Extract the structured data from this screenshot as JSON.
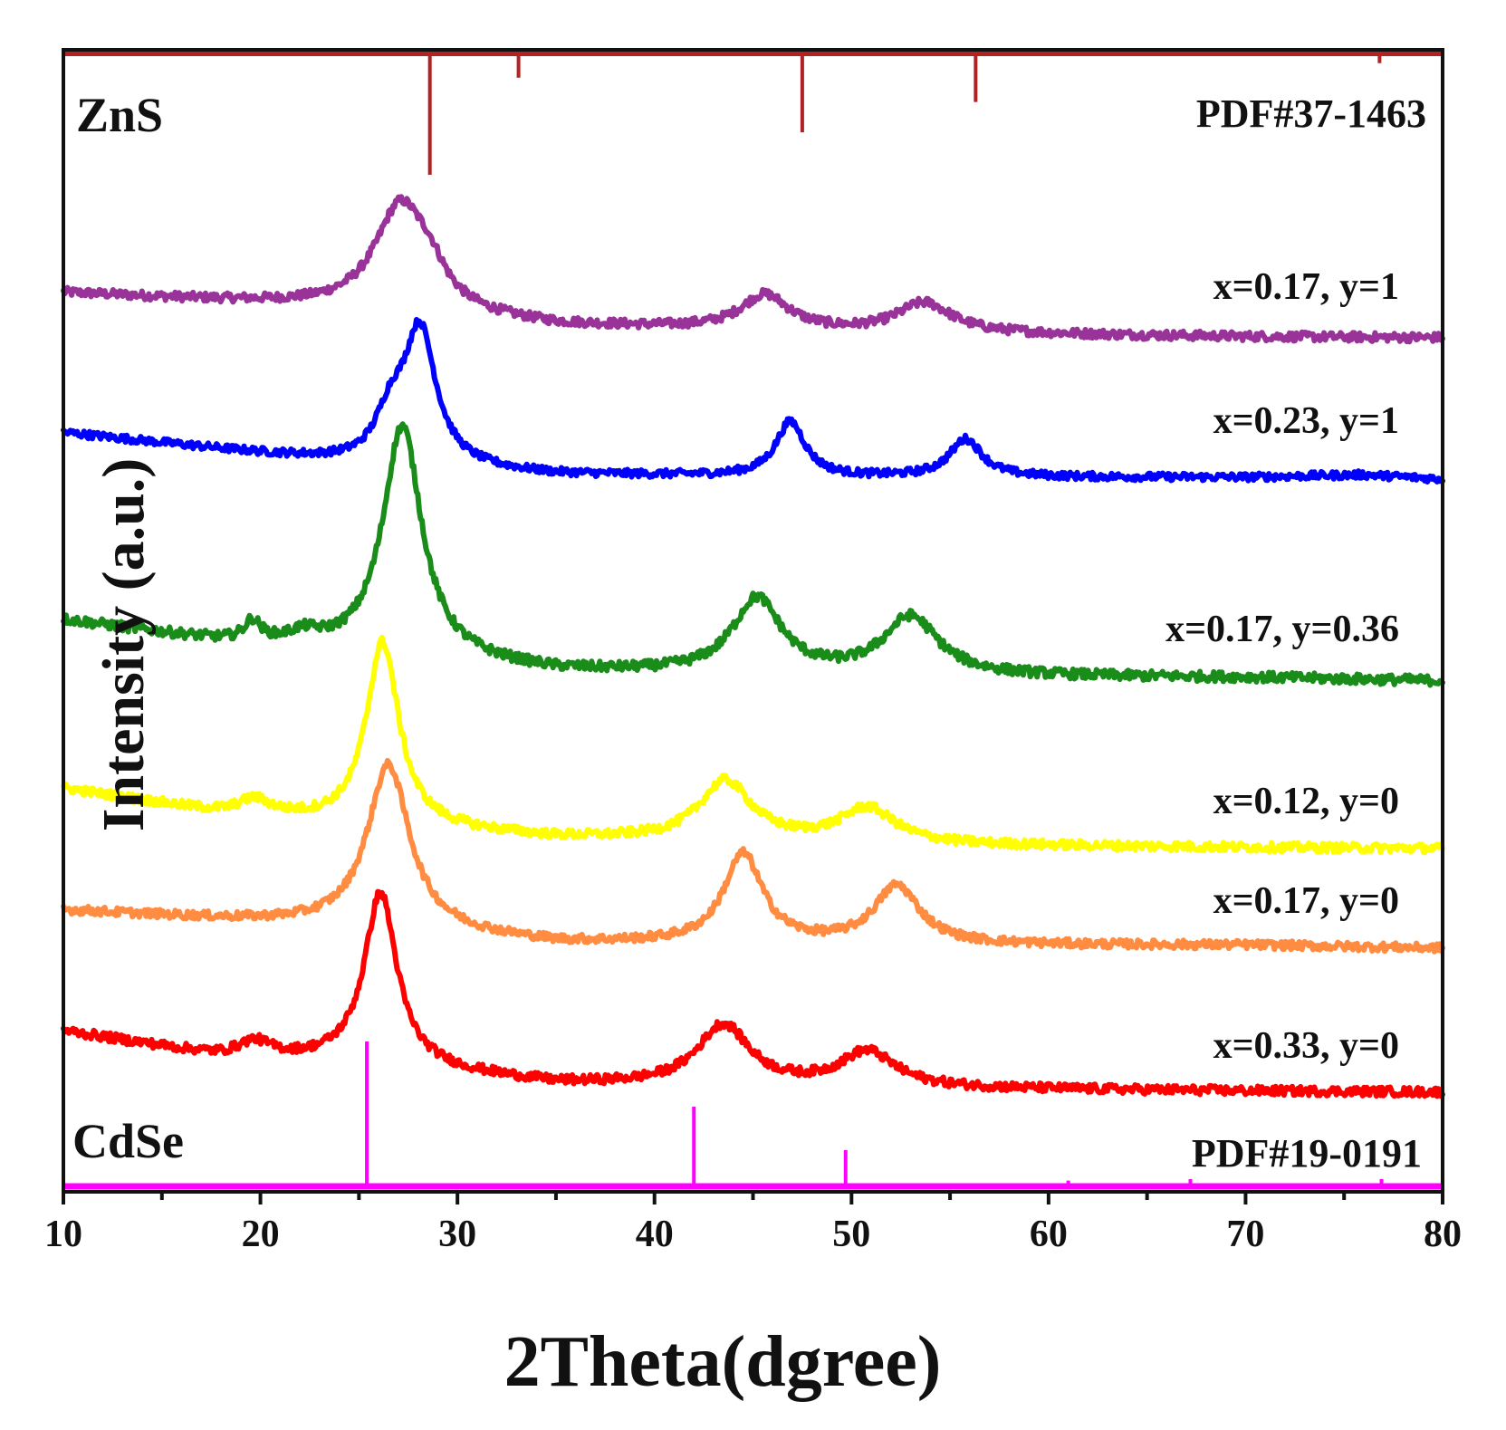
{
  "chart_data": {
    "type": "line",
    "title": "",
    "xlabel": "2Theta(dgree)",
    "ylabel": "Intensity (a.u.)",
    "xlim": [
      10,
      80
    ],
    "xticks": [
      10,
      20,
      30,
      40,
      50,
      60,
      70,
      80
    ],
    "y_axis_ticks": false,
    "grid": false,
    "legend": "inline labels at right",
    "reference_top": {
      "name": "ZnS",
      "pdf": "PDF#37-1463",
      "color": "#b22222",
      "peaks": [
        {
          "x": 28.6,
          "h": 1.0
        },
        {
          "x": 33.1,
          "h": 0.2
        },
        {
          "x": 47.5,
          "h": 0.65
        },
        {
          "x": 56.3,
          "h": 0.4
        },
        {
          "x": 76.8,
          "h": 0.08
        }
      ]
    },
    "reference_bottom": {
      "name": "CdSe",
      "pdf": "PDF#19-0191",
      "color": "#ff00ff",
      "peaks": [
        {
          "x": 25.4,
          "h": 1.0
        },
        {
          "x": 42.0,
          "h": 0.55
        },
        {
          "x": 49.7,
          "h": 0.25
        },
        {
          "x": 61.0,
          "h": 0.04
        },
        {
          "x": 67.2,
          "h": 0.05
        },
        {
          "x": 76.9,
          "h": 0.05
        }
      ]
    },
    "series": [
      {
        "name": "x=0.17, y=1",
        "color": "#993399",
        "offset": 5,
        "baseline": [
          [
            10,
            0.45
          ],
          [
            20,
            0.35
          ],
          [
            24,
            0.3
          ],
          [
            35,
            0.12
          ],
          [
            50,
            0.05
          ],
          [
            60,
            0.03
          ],
          [
            70,
            0.01
          ],
          [
            80,
            0.0
          ]
        ],
        "peaks": [
          {
            "x": 27.1,
            "h": 1.05,
            "w": 1.6
          },
          {
            "x": 28.6,
            "h": 0.25,
            "w": 1.0
          },
          {
            "x": 45.6,
            "h": 0.35,
            "w": 1.5
          },
          {
            "x": 53.7,
            "h": 0.3,
            "w": 1.7
          }
        ]
      },
      {
        "name": "x=0.23, y=1",
        "color": "#0000ff",
        "offset": 4,
        "baseline": [
          [
            10,
            0.55
          ],
          [
            20,
            0.3
          ],
          [
            25,
            0.18
          ],
          [
            35,
            0.05
          ],
          [
            50,
            0.02
          ],
          [
            70,
            0.02
          ],
          [
            76,
            0.05
          ],
          [
            80,
            0.0
          ]
        ],
        "peaks": [
          {
            "x": 26.6,
            "h": 0.5,
            "w": 0.9
          },
          {
            "x": 28.1,
            "h": 1.6,
            "w": 1.0
          },
          {
            "x": 46.9,
            "h": 0.65,
            "w": 0.9
          },
          {
            "x": 55.8,
            "h": 0.45,
            "w": 1.0
          }
        ]
      },
      {
        "name": "x=0.17, y=0.36",
        "color": "#1a8c1a",
        "offset": 3,
        "baseline": [
          [
            10,
            0.55
          ],
          [
            18,
            0.35
          ],
          [
            24,
            0.25
          ],
          [
            35,
            0.08
          ],
          [
            50,
            0.04
          ],
          [
            70,
            0.03
          ],
          [
            80,
            0.0
          ]
        ],
        "peaks": [
          {
            "x": 19.6,
            "h": 0.18,
            "w": 0.5
          },
          {
            "x": 22.2,
            "h": 0.1,
            "w": 1.0
          },
          {
            "x": 27.2,
            "h": 2.1,
            "w": 1.2
          },
          {
            "x": 45.2,
            "h": 0.68,
            "w": 1.5
          },
          {
            "x": 53.0,
            "h": 0.53,
            "w": 1.7
          }
        ]
      },
      {
        "name": "x=0.12, y=0",
        "color": "#ffff00",
        "offset": 2,
        "baseline": [
          [
            10,
            0.6
          ],
          [
            18,
            0.35
          ],
          [
            24,
            0.25
          ],
          [
            35,
            0.1
          ],
          [
            55,
            0.03
          ],
          [
            70,
            0.01
          ],
          [
            80,
            0.0
          ]
        ],
        "peaks": [
          {
            "x": 19.7,
            "h": 0.15,
            "w": 1.0
          },
          {
            "x": 26.2,
            "h": 1.85,
            "w": 1.0
          },
          {
            "x": 43.6,
            "h": 0.6,
            "w": 1.6
          },
          {
            "x": 50.8,
            "h": 0.35,
            "w": 1.7
          }
        ]
      },
      {
        "name": "x=0.17, y=0",
        "color": "#ff8c40",
        "offset": 1,
        "baseline": [
          [
            10,
            0.4
          ],
          [
            20,
            0.28
          ],
          [
            25,
            0.22
          ],
          [
            35,
            0.05
          ],
          [
            50,
            0.03
          ],
          [
            70,
            0.03
          ],
          [
            80,
            0.0
          ]
        ],
        "peaks": [
          {
            "x": 26.5,
            "h": 1.75,
            "w": 1.3
          },
          {
            "x": 44.5,
            "h": 0.95,
            "w": 1.2
          },
          {
            "x": 52.3,
            "h": 0.62,
            "w": 1.4
          }
        ]
      },
      {
        "name": "x=0.33, y=0",
        "color": "#ff0000",
        "offset": 0,
        "baseline": [
          [
            10,
            0.6
          ],
          [
            18,
            0.35
          ],
          [
            24,
            0.3
          ],
          [
            35,
            0.08
          ],
          [
            50,
            0.04
          ],
          [
            70,
            0.01
          ],
          [
            80,
            0.0
          ]
        ],
        "peaks": [
          {
            "x": 19.7,
            "h": 0.15,
            "w": 1.0
          },
          {
            "x": 26.1,
            "h": 1.7,
            "w": 1.0
          },
          {
            "x": 43.5,
            "h": 0.6,
            "w": 1.6
          },
          {
            "x": 50.8,
            "h": 0.35,
            "w": 1.7
          }
        ]
      }
    ]
  }
}
